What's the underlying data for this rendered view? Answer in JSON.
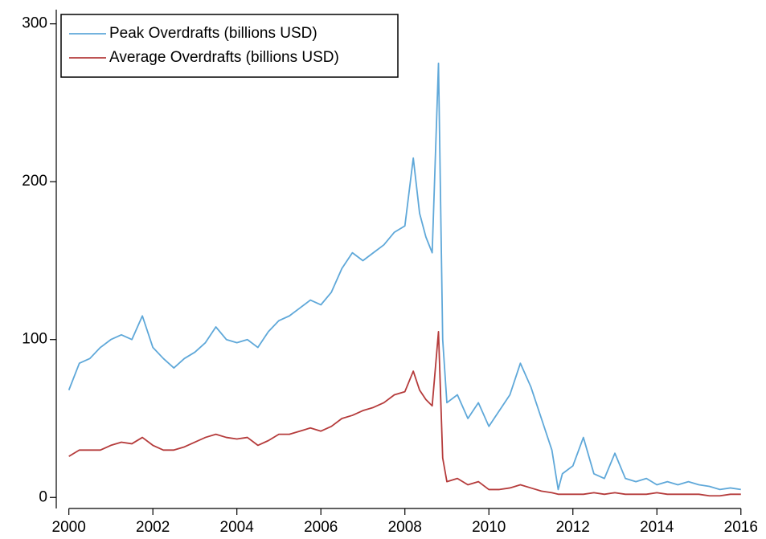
{
  "chart_data": {
    "type": "line",
    "x": [
      2000.0,
      2000.25,
      2000.5,
      2000.75,
      2001.0,
      2001.25,
      2001.5,
      2001.75,
      2002.0,
      2002.25,
      2002.5,
      2002.75,
      2003.0,
      2003.25,
      2003.5,
      2003.75,
      2004.0,
      2004.25,
      2004.5,
      2004.75,
      2005.0,
      2005.25,
      2005.5,
      2005.75,
      2006.0,
      2006.25,
      2006.5,
      2006.75,
      2007.0,
      2007.25,
      2007.5,
      2007.75,
      2008.0,
      2008.2,
      2008.35,
      2008.5,
      2008.65,
      2008.8,
      2008.9,
      2009.0,
      2009.25,
      2009.5,
      2009.75,
      2010.0,
      2010.25,
      2010.5,
      2010.75,
      2011.0,
      2011.25,
      2011.5,
      2011.65,
      2011.75,
      2012.0,
      2012.25,
      2012.5,
      2012.75,
      2013.0,
      2013.25,
      2013.5,
      2013.75,
      2014.0,
      2014.25,
      2014.5,
      2014.75,
      2015.0,
      2015.25,
      2015.5,
      2015.75,
      2016.0
    ],
    "series": [
      {
        "name": "Peak Overdrafts (billions USD)",
        "color": "#5fa8d9",
        "values": [
          68,
          85,
          88,
          95,
          100,
          103,
          100,
          115,
          95,
          88,
          82,
          88,
          92,
          98,
          108,
          100,
          98,
          100,
          95,
          105,
          112,
          115,
          120,
          125,
          122,
          130,
          145,
          155,
          150,
          155,
          160,
          168,
          172,
          215,
          180,
          165,
          155,
          275,
          100,
          60,
          65,
          50,
          60,
          45,
          55,
          65,
          85,
          70,
          50,
          30,
          5,
          15,
          20,
          38,
          15,
          12,
          28,
          12,
          10,
          12,
          8,
          10,
          8,
          10,
          8,
          7,
          5,
          6,
          5
        ]
      },
      {
        "name": "Average Overdrafts (billions USD)",
        "color": "#b53b3b",
        "values": [
          26,
          30,
          30,
          30,
          33,
          35,
          34,
          38,
          33,
          30,
          30,
          32,
          35,
          38,
          40,
          38,
          37,
          38,
          33,
          36,
          40,
          40,
          42,
          44,
          42,
          45,
          50,
          52,
          55,
          57,
          60,
          65,
          67,
          80,
          68,
          62,
          58,
          105,
          25,
          10,
          12,
          8,
          10,
          5,
          5,
          6,
          8,
          6,
          4,
          3,
          2,
          2,
          2,
          2,
          3,
          2,
          3,
          2,
          2,
          2,
          3,
          2,
          2,
          2,
          2,
          1,
          1,
          2,
          2
        ]
      }
    ],
    "xlim": [
      1999.7,
      2016.1
    ],
    "xticks": [
      2000,
      2002,
      2004,
      2006,
      2008,
      2010,
      2012,
      2014,
      2016
    ],
    "ylim": [
      -7,
      309
    ],
    "yticks": [
      0,
      100,
      200,
      300
    ],
    "grid": false,
    "legend": "top-left"
  }
}
